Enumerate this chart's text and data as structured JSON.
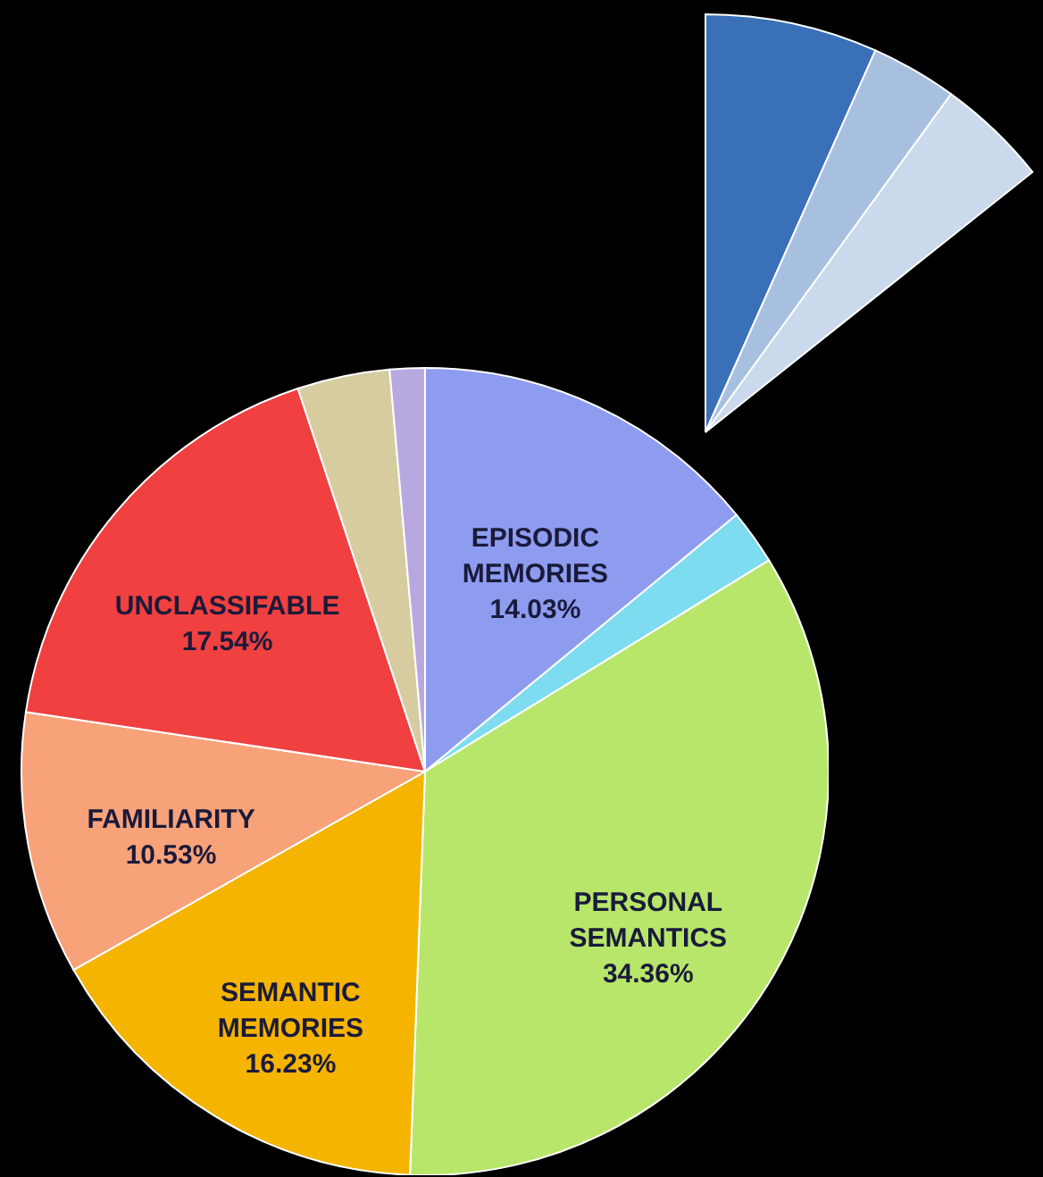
{
  "chart_data": {
    "type": "pie",
    "categories": [
      "EPISODIC MEMORIES",
      null,
      "PERSONAL SEMANTICS",
      "SEMANTIC MEMORIES",
      "FAMILIARITY",
      "UNCLASSIFABLE",
      null,
      null
    ],
    "values": [
      14.03,
      2.2,
      34.36,
      16.23,
      10.53,
      17.54,
      3.7,
      1.4
    ],
    "value_labels": [
      "14.03%",
      null,
      "34.36%",
      "16.23%",
      "10.53%",
      "17.54%",
      null,
      null
    ],
    "colors": [
      "#8e9cf0",
      "#7edcf0",
      "#b8e66a",
      "#f5b400",
      "#f8a27a",
      "#f04040",
      "#d6cca0",
      "#b8a8e0"
    ]
  }
}
